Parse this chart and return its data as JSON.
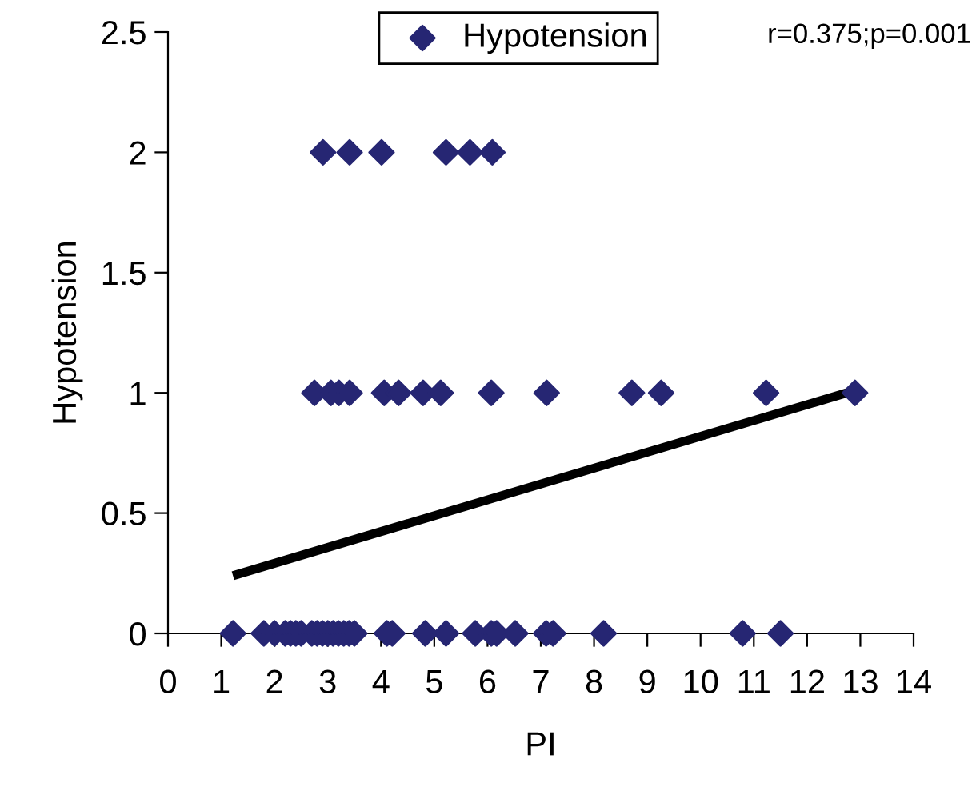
{
  "chart_data": {
    "type": "scatter",
    "xlabel": "PI",
    "ylabel": "Hypotension",
    "xlim": [
      0,
      14
    ],
    "ylim": [
      0,
      2.5
    ],
    "xticks": [
      0,
      1,
      2,
      3,
      4,
      5,
      6,
      7,
      8,
      9,
      10,
      11,
      12,
      13,
      14
    ],
    "yticks": [
      0,
      0.5,
      1,
      1.5,
      2,
      2.5
    ],
    "legend": "top",
    "marker": "diamond",
    "grid": false,
    "annotations": [
      "r=0.375;p=0.001"
    ],
    "series": [
      {
        "name": "Hypotension",
        "color": "#262673",
        "x": [
          2.91,
          3.41,
          4.01,
          5.22,
          5.67,
          6.09,
          2.75,
          3.06,
          3.21,
          3.41,
          4.06,
          4.33,
          4.79,
          5.12,
          6.07,
          7.11,
          8.71,
          9.26,
          11.23,
          12.9,
          1.22,
          1.8,
          2.0,
          2.2,
          2.3,
          2.4,
          2.5,
          2.7,
          2.8,
          2.9,
          3.0,
          3.1,
          3.2,
          3.3,
          3.4,
          3.5,
          4.11,
          4.21,
          4.83,
          5.22,
          5.77,
          6.07,
          6.17,
          6.52,
          7.1,
          7.23,
          8.18,
          10.79,
          11.5
        ],
        "values": [
          2,
          2,
          2,
          2,
          2,
          2,
          1,
          1,
          1,
          1,
          1,
          1,
          1,
          1,
          1,
          1,
          1,
          1,
          1,
          1,
          0,
          0,
          0,
          0,
          0,
          0,
          0,
          0,
          0,
          0,
          0,
          0,
          0,
          0,
          0,
          0,
          0,
          0,
          0,
          0,
          0,
          0,
          0,
          0,
          0,
          0,
          0,
          0,
          0
        ]
      },
      {
        "type": "line",
        "color": "#000000",
        "x": [
          1.22,
          12.9
        ],
        "values": [
          0.24,
          1.01
        ],
        "marker": "none"
      }
    ]
  }
}
